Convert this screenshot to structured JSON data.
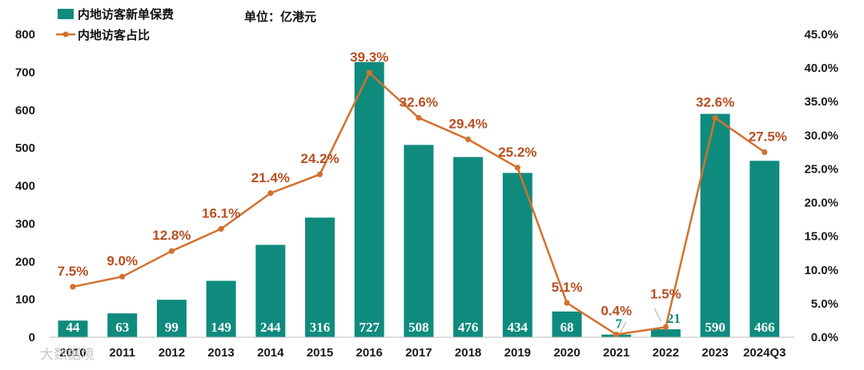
{
  "chart_data": {
    "type": "bar",
    "unit_label": "单位：亿港元",
    "categories": [
      "2010",
      "2011",
      "2012",
      "2013",
      "2014",
      "2015",
      "2016",
      "2017",
      "2018",
      "2019",
      "2020",
      "2021",
      "2022",
      "2023",
      "2024Q3"
    ],
    "series": [
      {
        "name": "内地访客新单保费",
        "type": "bar",
        "axis": "left",
        "color": "#0f8b7e",
        "values": [
          44,
          63,
          99,
          149,
          244,
          316,
          727,
          508,
          476,
          434,
          68,
          7,
          21,
          590,
          466
        ]
      },
      {
        "name": "内地访客占比",
        "type": "line",
        "axis": "right",
        "color": "#d2712e",
        "values": [
          7.5,
          9.0,
          12.8,
          16.1,
          21.4,
          24.2,
          39.3,
          32.6,
          29.4,
          25.2,
          5.1,
          0.4,
          1.5,
          32.6,
          27.5
        ],
        "labels": [
          "7.5%",
          "9.0%",
          "12.8%",
          "16.1%",
          "21.4%",
          "24.2%",
          "39.3%",
          "32.6%",
          "29.4%",
          "25.2%",
          "5.1%",
          "0.4%",
          "1.5%",
          "32.6%",
          "27.5%"
        ]
      }
    ],
    "ylim_left": [
      0,
      800
    ],
    "yticks_left": [
      "0",
      "100",
      "200",
      "300",
      "400",
      "500",
      "600",
      "700",
      "800"
    ],
    "ylim_right": [
      0,
      45
    ],
    "yticks_right": [
      "0.0%",
      "5.0%",
      "10.0%",
      "15.0%",
      "20.0%",
      "25.0%",
      "30.0%",
      "35.0%",
      "40.0%",
      "45.0%"
    ],
    "legend_position": "top-left",
    "grid": false,
    "watermark": "大数据境"
  }
}
